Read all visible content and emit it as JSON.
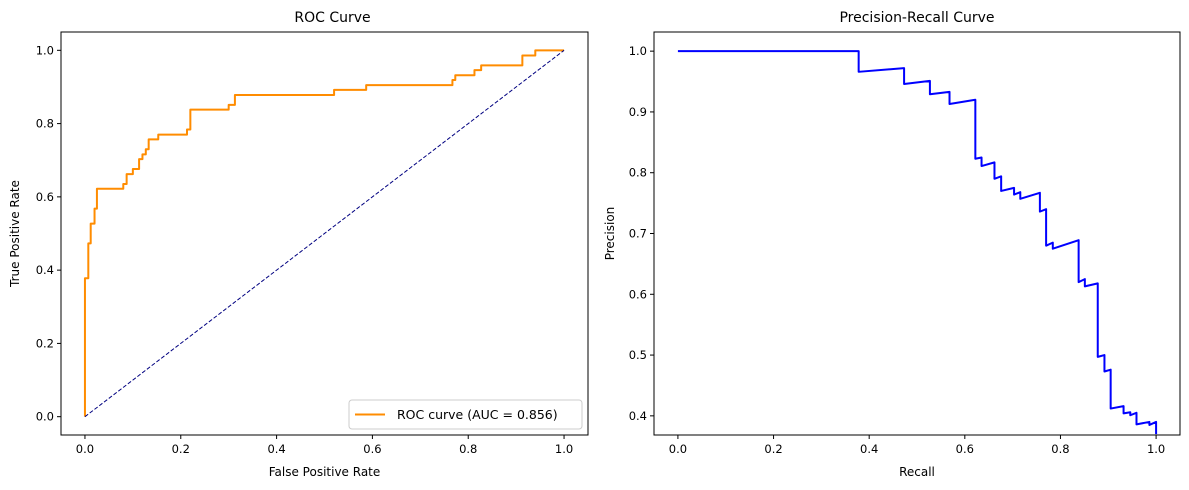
{
  "chart_data": [
    {
      "type": "line",
      "title": "ROC Curve",
      "xlabel": "False Positive Rate",
      "ylabel": "True Positive Rate",
      "xlim": [
        -0.05,
        1.05
      ],
      "ylim": [
        -0.05,
        1.05
      ],
      "xticks": [
        "0.0",
        "0.2",
        "0.4",
        "0.6",
        "0.8",
        "1.0"
      ],
      "yticks": [
        "0.0",
        "0.2",
        "0.4",
        "0.6",
        "0.8",
        "1.0"
      ],
      "grid": false,
      "legend_position": "bottom-right",
      "series": [
        {
          "name": "ROC curve (AUC = 0.856)",
          "color": "#ff8c00",
          "style": "solid",
          "x": [
            0.0,
            0.0,
            0.007,
            0.007,
            0.012,
            0.012,
            0.02,
            0.02,
            0.025,
            0.025,
            0.033,
            0.033,
            0.08,
            0.08,
            0.087,
            0.087,
            0.1,
            0.1,
            0.113,
            0.113,
            0.12,
            0.12,
            0.127,
            0.127,
            0.133,
            0.133,
            0.153,
            0.153,
            0.213,
            0.213,
            0.22,
            0.22,
            0.3,
            0.3,
            0.313,
            0.313,
            0.52,
            0.52,
            0.587,
            0.587,
            0.767,
            0.767,
            0.773,
            0.773,
            0.813,
            0.813,
            0.827,
            0.827,
            0.867,
            0.867,
            0.913,
            0.913,
            0.94,
            0.94,
            1.0
          ],
          "y": [
            0.0,
            0.378,
            0.378,
            0.473,
            0.473,
            0.527,
            0.527,
            0.568,
            0.568,
            0.622,
            0.622,
            0.622,
            0.622,
            0.635,
            0.635,
            0.662,
            0.662,
            0.676,
            0.676,
            0.703,
            0.703,
            0.716,
            0.716,
            0.73,
            0.73,
            0.757,
            0.757,
            0.77,
            0.77,
            0.784,
            0.784,
            0.838,
            0.838,
            0.851,
            0.851,
            0.878,
            0.878,
            0.892,
            0.892,
            0.905,
            0.905,
            0.919,
            0.919,
            0.932,
            0.932,
            0.946,
            0.946,
            0.959,
            0.959,
            0.959,
            0.959,
            0.986,
            0.986,
            1.0,
            1.0
          ]
        },
        {
          "name": "",
          "color": "#000080",
          "style": "dashed",
          "x": [
            0.0,
            1.0
          ],
          "y": [
            0.0,
            1.0
          ]
        }
      ]
    },
    {
      "type": "line",
      "title": "Precision-Recall Curve",
      "xlabel": "Recall",
      "ylabel": "Precision",
      "xlim": [
        -0.05,
        1.05
      ],
      "ylim": [
        0.3685,
        1.0315
      ],
      "xticks": [
        "0.0",
        "0.2",
        "0.4",
        "0.6",
        "0.8",
        "1.0"
      ],
      "yticks": [
        "0.4",
        "0.5",
        "0.6",
        "0.7",
        "0.8",
        "0.9",
        "1.0"
      ],
      "grid": false,
      "series": [
        {
          "name": "",
          "color": "#0000ff",
          "style": "solid",
          "x": [
            0.0,
            0.378,
            0.378,
            0.473,
            0.473,
            0.527,
            0.527,
            0.568,
            0.568,
            0.622,
            0.622,
            0.635,
            0.635,
            0.662,
            0.662,
            0.676,
            0.676,
            0.703,
            0.703,
            0.716,
            0.716,
            0.757,
            0.757,
            0.77,
            0.77,
            0.784,
            0.784,
            0.838,
            0.838,
            0.851,
            0.851,
            0.878,
            0.878,
            0.892,
            0.892,
            0.905,
            0.905,
            0.932,
            0.932,
            0.946,
            0.946,
            0.959,
            0.959,
            0.986,
            0.986,
            1.0,
            1.0
          ],
          "y": [
            1.0,
            1.0,
            0.966,
            0.972,
            0.946,
            0.951,
            0.929,
            0.933,
            0.913,
            0.92,
            0.823,
            0.825,
            0.811,
            0.817,
            0.79,
            0.794,
            0.77,
            0.775,
            0.764,
            0.768,
            0.757,
            0.767,
            0.736,
            0.74,
            0.68,
            0.685,
            0.675,
            0.689,
            0.62,
            0.625,
            0.613,
            0.618,
            0.497,
            0.5,
            0.473,
            0.476,
            0.412,
            0.416,
            0.404,
            0.406,
            0.401,
            0.405,
            0.386,
            0.39,
            0.385,
            0.39,
            0.37
          ]
        }
      ]
    }
  ]
}
